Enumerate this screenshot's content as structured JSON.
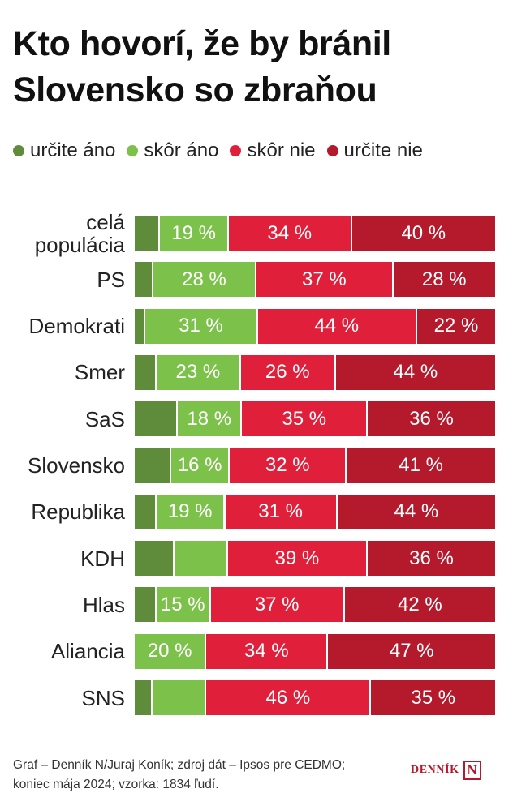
{
  "colors": {
    "urcite_ano": "#5e8c3a",
    "skor_ano": "#7cc24a",
    "skor_nie": "#e0203a",
    "urcite_nie": "#b4192c"
  },
  "footer": {
    "line1": "Graf – Denník N/Juraj Koník; zdroj dát – Ipsos pre CEDMO;",
    "line2": "koniec mája 2024; vzorka: 1834 ľudí."
  },
  "logo": {
    "text": "DENNÍK",
    "mark": "N"
  },
  "chart_data": {
    "type": "bar",
    "orientation": "horizontal",
    "stacked": true,
    "title": "Kto hovorí, že by bránil Slovensko so zbraňou",
    "categories": [
      "celá populácia",
      "PS",
      "Demokrati",
      "Smer",
      "SaS",
      "Slovensko",
      "Republika",
      "KDH",
      "Hlas",
      "Aliancia",
      "SNS"
    ],
    "series": [
      {
        "name": "určite áno",
        "color": "#5e8c3a",
        "values": [
          7,
          5,
          3,
          6,
          12,
          10,
          6,
          11,
          6,
          0,
          5
        ],
        "labels": [
          "",
          "",
          "",
          "",
          "",
          "",
          "",
          "",
          "",
          "",
          ""
        ]
      },
      {
        "name": "skôr áno",
        "color": "#7cc24a",
        "values": [
          19,
          28,
          31,
          23,
          18,
          16,
          19,
          15,
          15,
          20,
          15
        ],
        "labels": [
          "19 %",
          "28 %",
          "31 %",
          "23 %",
          "18 %",
          "16 %",
          "19 %",
          "",
          "15 %",
          "20 %",
          ""
        ]
      },
      {
        "name": "skôr nie",
        "color": "#e0203a",
        "values": [
          34,
          37,
          44,
          26,
          35,
          32,
          31,
          39,
          37,
          34,
          46
        ],
        "labels": [
          "34 %",
          "37 %",
          "44 %",
          "26 %",
          "35 %",
          "32 %",
          "31 %",
          "39 %",
          "37 %",
          "34 %",
          "46 %"
        ]
      },
      {
        "name": "určite nie",
        "color": "#b4192c",
        "values": [
          40,
          28,
          22,
          44,
          36,
          41,
          44,
          36,
          42,
          47,
          35
        ],
        "labels": [
          "40 %",
          "28 %",
          "22 %",
          "44 %",
          "36 %",
          "41 %",
          "44 %",
          "36 %",
          "42 %",
          "47 %",
          "35 %"
        ]
      }
    ],
    "xlim": [
      0,
      100
    ],
    "legend": "top",
    "grid": false
  }
}
